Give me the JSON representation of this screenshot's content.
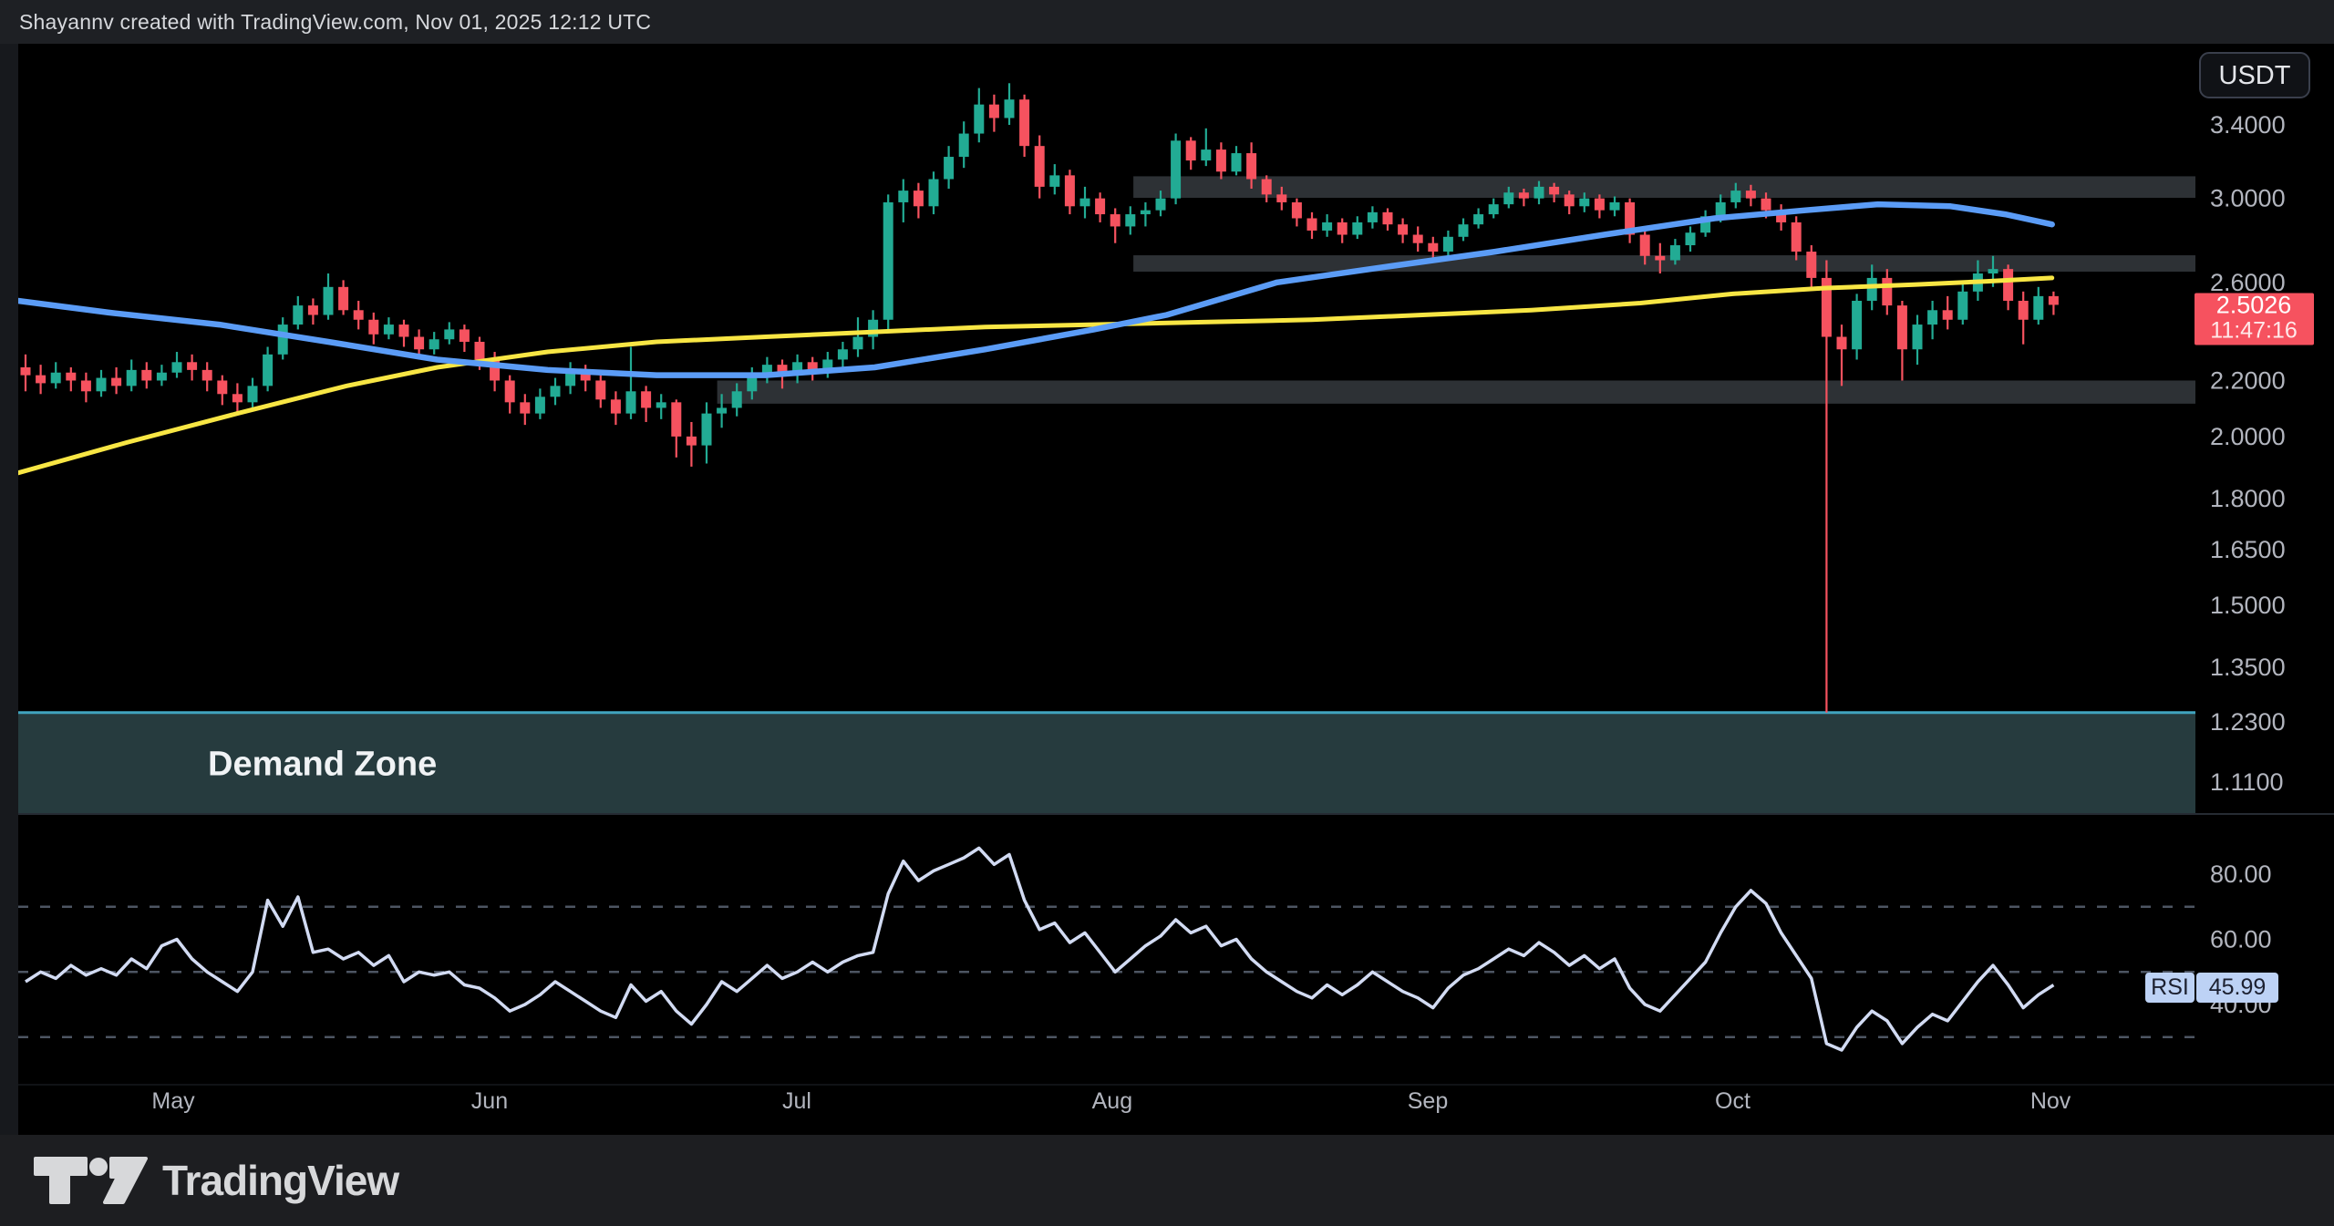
{
  "header": {
    "credit": "Shayannv created with TradingView.com, Nov 01, 2025 12:12 UTC"
  },
  "footer": {
    "brand": "TradingView"
  },
  "axis": {
    "currency_badge": "USDT",
    "last_price_label": "2.5026",
    "countdown_label": "11:47:16",
    "price_ticks": [
      {
        "value": 3.4,
        "label": "3.4000"
      },
      {
        "value": 3.0,
        "label": "3.0000"
      },
      {
        "value": 2.6,
        "label": "2.6000"
      },
      {
        "value": 2.2,
        "label": "2.2000"
      },
      {
        "value": 2.0,
        "label": "2.0000"
      },
      {
        "value": 1.8,
        "label": "1.8000"
      },
      {
        "value": 1.65,
        "label": "1.6500"
      },
      {
        "value": 1.5,
        "label": "1.5000"
      },
      {
        "value": 1.35,
        "label": "1.3500"
      },
      {
        "value": 1.23,
        "label": "1.2300"
      },
      {
        "value": 1.11,
        "label": "1.1100"
      }
    ],
    "rsi_ticks": [
      {
        "value": 80,
        "label": "80.00"
      },
      {
        "value": 60,
        "label": "60.00"
      },
      {
        "value": 40,
        "label": "40.00"
      }
    ]
  },
  "indicator": {
    "label": "RSI",
    "value_label": "45.99"
  },
  "annotations": {
    "demand_zone_label": "Demand Zone"
  },
  "colors": {
    "up": "#22ab94",
    "down": "#f6525f",
    "ma_fast": "#5b9cf6",
    "ma_slow": "#f8e644",
    "zone_fill": "rgba(190,205,222,0.24)",
    "demand_fill": "rgba(96,148,155,0.40)",
    "demand_border": "#41a4bf",
    "rsi_line": "#d2dbf3",
    "rsi_dash": "#4d5562",
    "tick_text": "#b2b5be",
    "badge_red": "#f6525f",
    "badge_blue": "#bdd2f5",
    "badge_blue_text": "#1c2030",
    "separator": "#262b33"
  },
  "chart_data": {
    "type": "candlestick",
    "title": "",
    "quote_currency": "USDT",
    "price_scale": "log",
    "visible_price_range": [
      1.05,
      3.75
    ],
    "rsi_range_levels": [
      70,
      50,
      30
    ],
    "last_price": 2.5026,
    "rsi_last": 45.99,
    "months": [
      {
        "label": "May",
        "index": 9.76
      },
      {
        "label": "Jun",
        "index": 30.66
      },
      {
        "label": "Jul",
        "index": 50.96
      },
      {
        "label": "Aug",
        "index": 71.8
      },
      {
        "label": "Sep",
        "index": 92.65
      },
      {
        "label": "Oct",
        "index": 112.8
      },
      {
        "label": "Nov",
        "index": 133.8
      }
    ],
    "zones": [
      {
        "name": "supply-zone-3.0",
        "top": 3.115,
        "bottom": 3.003,
        "from_index": 73.2
      },
      {
        "name": "supply-zone-2.7",
        "top": 2.723,
        "bottom": 2.648,
        "from_index": 73.2
      },
      {
        "name": "support-zone-2.2",
        "top": 2.2,
        "bottom": 2.115,
        "from_index": 45.7
      }
    ],
    "demand_zone": {
      "label": "Demand Zone",
      "top": 1.25
    },
    "ma_fast_anchors": [
      [
        -0.5,
        2.52
      ],
      [
        5.5,
        2.47
      ],
      [
        12.8,
        2.42
      ],
      [
        20,
        2.35
      ],
      [
        27.2,
        2.28
      ],
      [
        34.5,
        2.24
      ],
      [
        41.7,
        2.22
      ],
      [
        48.9,
        2.22
      ],
      [
        56.1,
        2.25
      ],
      [
        63.4,
        2.32
      ],
      [
        70.6,
        2.4
      ],
      [
        75.4,
        2.46
      ],
      [
        82.7,
        2.6
      ],
      [
        89.9,
        2.67
      ],
      [
        97.1,
        2.74
      ],
      [
        104.3,
        2.82
      ],
      [
        111.6,
        2.9
      ],
      [
        117.6,
        2.94
      ],
      [
        122.4,
        2.97
      ],
      [
        127.2,
        2.96
      ],
      [
        130.8,
        2.92
      ],
      [
        133.9,
        2.87
      ]
    ],
    "ma_slow_anchors": [
      [
        -0.5,
        1.88
      ],
      [
        6.7,
        1.98
      ],
      [
        14,
        2.08
      ],
      [
        21.2,
        2.18
      ],
      [
        27.2,
        2.25
      ],
      [
        34.5,
        2.31
      ],
      [
        41.7,
        2.35
      ],
      [
        48.9,
        2.37
      ],
      [
        56.1,
        2.39
      ],
      [
        63.4,
        2.41
      ],
      [
        70.6,
        2.42
      ],
      [
        77.8,
        2.43
      ],
      [
        85,
        2.44
      ],
      [
        92.3,
        2.46
      ],
      [
        99.5,
        2.48
      ],
      [
        106.7,
        2.51
      ],
      [
        112.8,
        2.55
      ],
      [
        118.8,
        2.575
      ],
      [
        124.8,
        2.59
      ],
      [
        129.6,
        2.605
      ],
      [
        133.9,
        2.62
      ]
    ],
    "candles": [
      [
        2.25,
        2.3,
        2.16,
        2.22
      ],
      [
        2.22,
        2.26,
        2.15,
        2.19
      ],
      [
        2.19,
        2.27,
        2.17,
        2.23
      ],
      [
        2.23,
        2.25,
        2.16,
        2.2
      ],
      [
        2.2,
        2.23,
        2.12,
        2.16
      ],
      [
        2.16,
        2.24,
        2.14,
        2.21
      ],
      [
        2.21,
        2.25,
        2.15,
        2.18
      ],
      [
        2.18,
        2.28,
        2.16,
        2.24
      ],
      [
        2.24,
        2.27,
        2.17,
        2.2
      ],
      [
        2.2,
        2.26,
        2.18,
        2.23
      ],
      [
        2.23,
        2.31,
        2.21,
        2.27
      ],
      [
        2.27,
        2.3,
        2.2,
        2.24
      ],
      [
        2.24,
        2.27,
        2.16,
        2.2
      ],
      [
        2.2,
        2.22,
        2.11,
        2.15
      ],
      [
        2.15,
        2.19,
        2.08,
        2.12
      ],
      [
        2.12,
        2.21,
        2.1,
        2.18
      ],
      [
        2.18,
        2.33,
        2.16,
        2.3
      ],
      [
        2.3,
        2.45,
        2.28,
        2.42
      ],
      [
        2.42,
        2.54,
        2.4,
        2.5
      ],
      [
        2.5,
        2.53,
        2.42,
        2.46
      ],
      [
        2.46,
        2.64,
        2.44,
        2.58
      ],
      [
        2.58,
        2.61,
        2.46,
        2.48
      ],
      [
        2.48,
        2.52,
        2.4,
        2.44
      ],
      [
        2.44,
        2.47,
        2.34,
        2.38
      ],
      [
        2.38,
        2.45,
        2.36,
        2.42
      ],
      [
        2.42,
        2.44,
        2.33,
        2.37
      ],
      [
        2.37,
        2.4,
        2.28,
        2.32
      ],
      [
        2.32,
        2.39,
        2.3,
        2.36
      ],
      [
        2.36,
        2.43,
        2.34,
        2.4
      ],
      [
        2.4,
        2.42,
        2.31,
        2.35
      ],
      [
        2.35,
        2.37,
        2.24,
        2.28
      ],
      [
        2.28,
        2.31,
        2.16,
        2.2
      ],
      [
        2.2,
        2.22,
        2.08,
        2.12
      ],
      [
        2.12,
        2.15,
        2.04,
        2.08
      ],
      [
        2.08,
        2.17,
        2.06,
        2.14
      ],
      [
        2.14,
        2.21,
        2.11,
        2.18
      ],
      [
        2.18,
        2.27,
        2.15,
        2.24
      ],
      [
        2.24,
        2.26,
        2.16,
        2.2
      ],
      [
        2.2,
        2.22,
        2.1,
        2.13
      ],
      [
        2.13,
        2.16,
        2.04,
        2.08
      ],
      [
        2.08,
        2.33,
        2.06,
        2.16
      ],
      [
        2.16,
        2.18,
        2.05,
        2.1
      ],
      [
        2.1,
        2.15,
        2.06,
        2.12
      ],
      [
        2.12,
        2.13,
        1.93,
        2.0
      ],
      [
        2.0,
        2.05,
        1.9,
        1.97
      ],
      [
        1.97,
        2.12,
        1.91,
        2.08
      ],
      [
        2.08,
        2.15,
        2.03,
        2.1
      ],
      [
        2.1,
        2.19,
        2.07,
        2.16
      ],
      [
        2.16,
        2.25,
        2.13,
        2.22
      ],
      [
        2.22,
        2.29,
        2.19,
        2.26
      ],
      [
        2.26,
        2.28,
        2.17,
        2.22
      ],
      [
        2.22,
        2.3,
        2.19,
        2.27
      ],
      [
        2.27,
        2.29,
        2.2,
        2.24
      ],
      [
        2.24,
        2.31,
        2.21,
        2.28
      ],
      [
        2.28,
        2.35,
        2.25,
        2.32
      ],
      [
        2.32,
        2.45,
        2.29,
        2.37
      ],
      [
        2.37,
        2.48,
        2.32,
        2.44
      ],
      [
        2.44,
        3.02,
        2.4,
        2.98
      ],
      [
        2.98,
        3.1,
        2.88,
        3.04
      ],
      [
        3.04,
        3.08,
        2.9,
        2.96
      ],
      [
        2.96,
        3.14,
        2.92,
        3.1
      ],
      [
        3.1,
        3.28,
        3.05,
        3.22
      ],
      [
        3.22,
        3.42,
        3.16,
        3.35
      ],
      [
        3.35,
        3.62,
        3.3,
        3.52
      ],
      [
        3.52,
        3.58,
        3.36,
        3.44
      ],
      [
        3.44,
        3.65,
        3.4,
        3.55
      ],
      [
        3.55,
        3.58,
        3.22,
        3.28
      ],
      [
        3.28,
        3.34,
        3.0,
        3.06
      ],
      [
        3.06,
        3.18,
        3.02,
        3.12
      ],
      [
        3.12,
        3.15,
        2.92,
        2.96
      ],
      [
        2.96,
        3.06,
        2.9,
        3.0
      ],
      [
        3.0,
        3.03,
        2.88,
        2.92
      ],
      [
        2.92,
        2.95,
        2.78,
        2.86
      ],
      [
        2.86,
        2.96,
        2.82,
        2.92
      ],
      [
        2.92,
        2.98,
        2.86,
        2.94
      ],
      [
        2.94,
        3.04,
        2.91,
        3.0
      ],
      [
        3.0,
        3.35,
        2.97,
        3.31
      ],
      [
        3.31,
        3.33,
        3.15,
        3.2
      ],
      [
        3.2,
        3.38,
        3.17,
        3.26
      ],
      [
        3.26,
        3.3,
        3.1,
        3.14
      ],
      [
        3.14,
        3.28,
        3.12,
        3.24
      ],
      [
        3.24,
        3.3,
        3.05,
        3.1
      ],
      [
        3.1,
        3.12,
        2.98,
        3.02
      ],
      [
        3.02,
        3.06,
        2.94,
        2.98
      ],
      [
        2.98,
        3.0,
        2.86,
        2.9
      ],
      [
        2.9,
        2.93,
        2.8,
        2.84
      ],
      [
        2.84,
        2.92,
        2.81,
        2.88
      ],
      [
        2.88,
        2.9,
        2.78,
        2.82
      ],
      [
        2.82,
        2.91,
        2.8,
        2.88
      ],
      [
        2.88,
        2.96,
        2.85,
        2.93
      ],
      [
        2.93,
        2.95,
        2.84,
        2.87
      ],
      [
        2.87,
        2.9,
        2.78,
        2.82
      ],
      [
        2.82,
        2.86,
        2.74,
        2.78
      ],
      [
        2.78,
        2.81,
        2.7,
        2.74
      ],
      [
        2.74,
        2.84,
        2.72,
        2.81
      ],
      [
        2.81,
        2.9,
        2.79,
        2.87
      ],
      [
        2.87,
        2.95,
        2.85,
        2.92
      ],
      [
        2.92,
        3.0,
        2.9,
        2.97
      ],
      [
        2.97,
        3.06,
        2.95,
        3.03
      ],
      [
        3.03,
        3.05,
        2.96,
        3.0
      ],
      [
        3.0,
        3.09,
        2.97,
        3.06
      ],
      [
        3.06,
        3.08,
        2.98,
        3.02
      ],
      [
        3.02,
        3.04,
        2.92,
        2.96
      ],
      [
        2.96,
        3.03,
        2.93,
        3.0
      ],
      [
        3.0,
        3.02,
        2.9,
        2.94
      ],
      [
        2.94,
        3.01,
        2.91,
        2.98
      ],
      [
        2.98,
        3.0,
        2.78,
        2.82
      ],
      [
        2.82,
        2.85,
        2.68,
        2.72
      ],
      [
        2.72,
        2.78,
        2.64,
        2.7
      ],
      [
        2.7,
        2.8,
        2.68,
        2.77
      ],
      [
        2.77,
        2.86,
        2.74,
        2.83
      ],
      [
        2.83,
        2.94,
        2.81,
        2.91
      ],
      [
        2.91,
        3.02,
        2.88,
        2.98
      ],
      [
        2.98,
        3.08,
        2.95,
        3.04
      ],
      [
        3.04,
        3.07,
        2.96,
        3.0
      ],
      [
        3.0,
        3.03,
        2.9,
        2.94
      ],
      [
        2.94,
        2.97,
        2.84,
        2.88
      ],
      [
        2.88,
        2.91,
        2.7,
        2.74
      ],
      [
        2.74,
        2.77,
        2.58,
        2.62
      ],
      [
        2.62,
        2.7,
        1.25,
        2.37
      ],
      [
        2.37,
        2.42,
        2.18,
        2.32
      ],
      [
        2.32,
        2.55,
        2.28,
        2.52
      ],
      [
        2.52,
        2.68,
        2.48,
        2.62
      ],
      [
        2.62,
        2.66,
        2.46,
        2.5
      ],
      [
        2.5,
        2.52,
        2.2,
        2.32
      ],
      [
        2.32,
        2.46,
        2.26,
        2.42
      ],
      [
        2.42,
        2.52,
        2.36,
        2.48
      ],
      [
        2.48,
        2.54,
        2.4,
        2.44
      ],
      [
        2.44,
        2.6,
        2.42,
        2.56
      ],
      [
        2.56,
        2.7,
        2.52,
        2.64
      ],
      [
        2.64,
        2.72,
        2.58,
        2.66
      ],
      [
        2.66,
        2.68,
        2.48,
        2.52
      ],
      [
        2.52,
        2.56,
        2.34,
        2.44
      ],
      [
        2.44,
        2.58,
        2.42,
        2.54
      ],
      [
        2.54,
        2.56,
        2.46,
        2.5026
      ]
    ],
    "rsi_values": [
      47,
      50,
      48,
      52,
      49,
      51,
      49,
      54,
      51,
      58,
      60,
      54,
      50,
      47,
      44,
      50,
      72,
      64,
      73,
      56,
      57,
      54,
      56,
      52,
      55,
      47,
      50,
      49,
      50,
      46,
      45,
      42,
      38,
      40,
      43,
      47,
      44,
      41,
      38,
      36,
      46,
      41,
      44,
      38,
      34,
      40,
      47,
      44,
      48,
      52,
      48,
      50,
      53,
      50,
      53,
      55,
      56,
      74,
      84,
      78,
      81,
      83,
      85,
      88,
      83,
      86,
      72,
      63,
      65,
      59,
      62,
      56,
      50,
      54,
      58,
      61,
      66,
      62,
      64,
      58,
      60,
      54,
      50,
      47,
      44,
      42,
      46,
      43,
      46,
      50,
      47,
      44,
      42,
      39,
      45,
      49,
      51,
      54,
      57,
      55,
      59,
      56,
      52,
      55,
      51,
      54,
      45,
      40,
      38,
      43,
      48,
      53,
      62,
      70,
      75,
      71,
      62,
      55,
      48,
      28,
      26,
      33,
      38,
      35,
      28,
      33,
      37,
      35,
      41,
      47,
      52,
      46,
      39,
      43,
      45.99
    ]
  }
}
